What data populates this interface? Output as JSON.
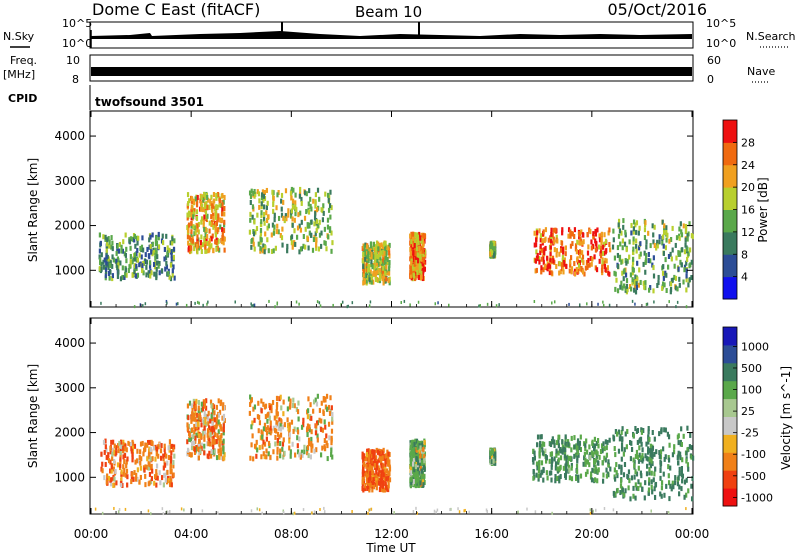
{
  "header": {
    "station": "Dome C East (fitACF)",
    "beam": "Beam 10",
    "date": "05/Oct/2016"
  },
  "strips": {
    "nsky_label": "N.Sky",
    "nsky_ticks": [
      "10^5",
      "10^0"
    ],
    "nsearch_label": "N.Search",
    "freq_label": "Freq.",
    "freq_unit": "[MHz]",
    "freq_ticks": [
      "10",
      "8"
    ],
    "nave_ticks": [
      "60",
      "0"
    ],
    "nave_label": "Nave",
    "cpid_label": "CPID",
    "cpid_value": "twofsound 3501"
  },
  "colors": {
    "power": [
      "#1010ee",
      "#2c4d96",
      "#3a7a5e",
      "#5aa84a",
      "#b8cf2e",
      "#f0a020",
      "#f06a10",
      "#ee1010"
    ],
    "velocity": [
      "#ee1010",
      "#f04010",
      "#f08018",
      "#f0b020",
      "#c8c8c8",
      "#a8c890",
      "#5aa84a",
      "#3a7a5e",
      "#2c4d96",
      "#1818b8"
    ]
  },
  "chart_data": [
    {
      "type": "heatmap",
      "ylabel": "Slant Range [km]",
      "xlabel": "Time UT",
      "x_ticks": [
        "00:00",
        "04:00",
        "08:00",
        "12:00",
        "16:00",
        "20:00",
        "00:00"
      ],
      "x_range_hours": [
        0,
        24
      ],
      "y_ticks": [
        "1000",
        "2000",
        "3000",
        "4000"
      ],
      "ylim": [
        180,
        4560
      ],
      "colorbar_label": "Power [dB]",
      "colorbar_ticks": [
        "4",
        "8",
        "12",
        "16",
        "20",
        "24",
        "28"
      ],
      "colorbar_range": [
        0,
        32
      ],
      "echo_regions": [
        {
          "t": [
            0.3,
            3.3
          ],
          "range": [
            800,
            1800
          ],
          "power": 12
        },
        {
          "t": [
            3.8,
            5.3
          ],
          "range": [
            1400,
            2700
          ],
          "power": 22
        },
        {
          "t": [
            6.3,
            9.6
          ],
          "range": [
            1400,
            2800
          ],
          "power": 16
        },
        {
          "t": [
            10.8,
            11.9
          ],
          "range": [
            700,
            1600
          ],
          "power": 18
        },
        {
          "t": [
            12.7,
            13.3
          ],
          "range": [
            800,
            1800
          ],
          "power": 24
        },
        {
          "t": [
            15.9,
            16.1
          ],
          "range": [
            1300,
            1600
          ],
          "power": 16
        },
        {
          "t": [
            17.6,
            20.7
          ],
          "range": [
            900,
            1900
          ],
          "power": 26
        },
        {
          "t": [
            20.8,
            24.0
          ],
          "range": [
            500,
            2100
          ],
          "power": 14
        }
      ]
    },
    {
      "type": "heatmap",
      "ylabel": "Slant Range [km]",
      "xlabel": "Time UT",
      "x_ticks": [
        "00:00",
        "04:00",
        "08:00",
        "12:00",
        "16:00",
        "20:00",
        "00:00"
      ],
      "x_range_hours": [
        0,
        24
      ],
      "y_ticks": [
        "1000",
        "2000",
        "3000",
        "4000"
      ],
      "ylim": [
        180,
        4560
      ],
      "colorbar_label": "Velocity [m s^-1]",
      "colorbar_ticks": [
        "1000",
        "500",
        "100",
        "25",
        "-25",
        "-100",
        "-500",
        "-1000"
      ],
      "echo_regions": [
        {
          "t": [
            0.3,
            3.3
          ],
          "range": [
            800,
            1800
          ],
          "velocity": -200
        },
        {
          "t": [
            3.8,
            5.3
          ],
          "range": [
            1400,
            2700
          ],
          "velocity": -150
        },
        {
          "t": [
            6.3,
            9.6
          ],
          "range": [
            1400,
            2800
          ],
          "velocity": -100
        },
        {
          "t": [
            10.8,
            11.9
          ],
          "range": [
            700,
            1600
          ],
          "velocity": -300
        },
        {
          "t": [
            12.7,
            13.3
          ],
          "range": [
            800,
            1800
          ],
          "velocity": 150
        },
        {
          "t": [
            15.9,
            16.1
          ],
          "range": [
            1300,
            1600
          ],
          "velocity": 200
        },
        {
          "t": [
            17.6,
            20.7
          ],
          "range": [
            900,
            1900
          ],
          "velocity": 300
        },
        {
          "t": [
            20.8,
            24.0
          ],
          "range": [
            500,
            2100
          ],
          "velocity": 400
        }
      ]
    }
  ]
}
